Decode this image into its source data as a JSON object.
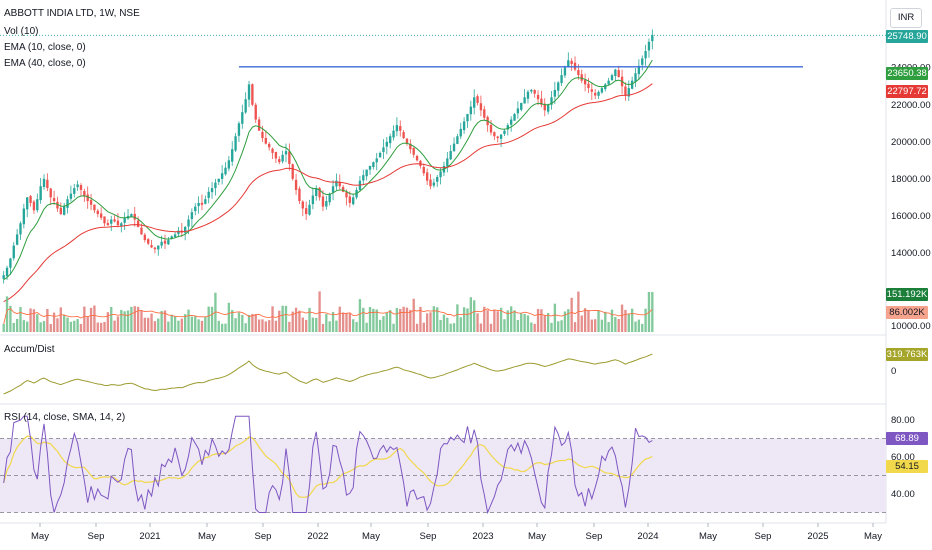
{
  "header": {
    "symbol_line": "ABBOTT INDIA LTD, 1W, NSE",
    "vol_label": "Vol (10)",
    "ema10_label": "EMA (10, close, 0)",
    "ema40_label": "EMA (40, close, 0)",
    "accum_label": "Accum/Dist",
    "rsi_label": "RSI (14, close, SMA, 14, 2)",
    "currency": "INR"
  },
  "colors": {
    "up": "#26a69a",
    "down": "#ef5350",
    "ema10": "#2e9e3e",
    "ema40": "#e53935",
    "hline": "#3e6cd8",
    "ad": "#9b9b2f",
    "rsi": "#7e57c2",
    "rsi_ma": "#f2d84b",
    "rsi_band": "#ede7f6",
    "vol_ma": "#ff7043"
  },
  "price_axis": {
    "ticks": [
      "24000.00",
      "22000.00",
      "20000.00",
      "18000.00",
      "16000.00",
      "14000.00"
    ],
    "vol_ticks": [
      "10000.00"
    ],
    "ad_ticks": [
      "0"
    ],
    "rsi_ticks": [
      "80.00",
      "60.00",
      "40.00"
    ]
  },
  "price_labels": {
    "last": "25748.90",
    "ema10": "23650.38",
    "ema40": "22797.72",
    "vol": "151.192K",
    "vol_ma": "86.002K",
    "ad": "319.763K",
    "rsi": "68.89",
    "rsi_ma": "54.15"
  },
  "time_axis": [
    "May",
    "Sep",
    "2021",
    "May",
    "Sep",
    "2022",
    "May",
    "Sep",
    "2023",
    "May",
    "Sep",
    "2024",
    "May",
    "Sep",
    "2025",
    "May"
  ],
  "chart_data": {
    "type": "candlestick",
    "interval": "1W",
    "x_range": [
      "2020-03",
      "2025-06"
    ],
    "price_range": [
      10000,
      26000
    ],
    "horizontal_line": 24050,
    "closes": [
      12800,
      13200,
      13700,
      14400,
      15000,
      15600,
      16400,
      17000,
      16700,
      16300,
      16900,
      17600,
      18000,
      17500,
      17000,
      16800,
      16400,
      16100,
      16500,
      16900,
      17200,
      17500,
      17700,
      17400,
      17100,
      16800,
      16600,
      16300,
      16100,
      15900,
      15600,
      15500,
      15800,
      15700,
      15500,
      15600,
      15900,
      16000,
      16100,
      15800,
      15400,
      15000,
      14700,
      14500,
      14300,
      14200,
      14400,
      14600,
      14500,
      14700,
      14900,
      15000,
      15200,
      15100,
      15400,
      15800,
      16200,
      16500,
      16700,
      16600,
      16900,
      17300,
      17500,
      17800,
      18000,
      18300,
      18600,
      19000,
      19600,
      20300,
      21000,
      21600,
      22300,
      23100,
      22000,
      21200,
      20600,
      20200,
      19900,
      19700,
      19400,
      19100,
      18900,
      19300,
      19500,
      18800,
      18000,
      17400,
      16800,
      16400,
      16100,
      16600,
      17100,
      17500,
      17000,
      16500,
      16800,
      17200,
      17600,
      17900,
      17600,
      17300,
      17000,
      16700,
      17000,
      17400,
      17900,
      18200,
      18500,
      18700,
      18900,
      19100,
      19400,
      19700,
      20000,
      20300,
      20600,
      20900,
      20600,
      20200,
      19900,
      19600,
      19300,
      19000,
      18700,
      18300,
      17900,
      17600,
      17800,
      18100,
      18400,
      18700,
      19100,
      19500,
      19900,
      20300,
      20700,
      21100,
      21500,
      21900,
      22400,
      22100,
      21700,
      21300,
      20900,
      20500,
      20300,
      20200,
      20400,
      20600,
      20900,
      21200,
      21500,
      21800,
      22100,
      22400,
      22700,
      22800,
      22600,
      22300,
      22000,
      21700,
      22000,
      22400,
      22800,
      23200,
      23600,
      24000,
      24400,
      24200,
      23900,
      23600,
      23300,
      23100,
      22900,
      22700,
      22500,
      22700,
      22900,
      23100,
      23300,
      23600,
      23900,
      23500,
      23000,
      22500,
      22900,
      23300,
      23700,
      24100,
      24500,
      24900,
      25400,
      25748.9
    ],
    "ema10_last": 23650.38,
    "ema40_last": 22797.72,
    "volume_last": 151192,
    "volume_ma_last": 86002,
    "accum_dist_last": 319763,
    "rsi_last": 68.89,
    "rsi_ma_last": 54.15,
    "rsi_range": [
      25,
      85
    ],
    "rsi_bands": [
      70,
      50,
      30
    ]
  }
}
